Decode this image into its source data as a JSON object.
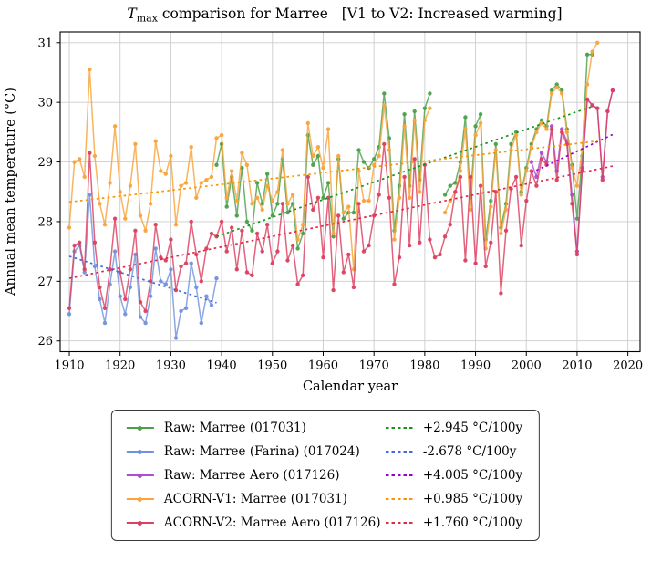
{
  "title": {
    "prefix_italic": "T",
    "subscript": "max",
    "rest": " comparison for Marree   [V1 to V2: Increased warming]"
  },
  "axes": {
    "xlabel": "Calendar year",
    "ylabel": "Annual mean temperature (°C)",
    "xlim": [
      1908.2,
      2022.4
    ],
    "ylim": [
      25.82,
      31.18
    ],
    "xticks": [
      1910,
      1920,
      1930,
      1940,
      1950,
      1960,
      1970,
      1980,
      1990,
      2000,
      2010,
      2020
    ],
    "yticks": [
      26,
      27,
      28,
      29,
      30,
      31
    ],
    "grid_color": "#cccccc",
    "frame_color": "#000000"
  },
  "chart_data": {
    "type": "line",
    "x_unit": "calendar year",
    "series": [
      {
        "slug": "raw-marree-017031",
        "label": "Raw: Marree (017031)",
        "color": "#4ca04c",
        "start_year": 1939,
        "values": [
          28.95,
          29.3,
          28.25,
          28.75,
          28.1,
          28.9,
          28.0,
          27.85,
          28.65,
          28.3,
          28.8,
          28.1,
          28.3,
          29.05,
          28.15,
          28.3,
          27.55,
          27.8,
          29.45,
          28.95,
          29.1,
          28.4,
          28.65,
          27.75,
          29.05,
          28.05,
          28.15,
          28.15,
          29.2,
          29.0,
          28.9,
          29.05,
          29.25,
          30.15,
          29.4,
          27.85,
          28.6,
          29.8,
          28.6,
          29.85,
          28.7,
          29.9,
          30.15,
          null,
          null,
          28.45,
          28.6,
          28.65,
          29.0,
          29.75,
          28.4,
          29.6,
          29.8,
          27.7,
          28.35,
          29.3,
          27.9,
          28.3,
          29.3,
          29.5,
          28.5,
          28.9,
          29.3,
          29.55,
          29.7,
          29.6,
          30.2,
          30.3,
          30.2,
          29.55,
          28.95,
          28.05,
          29.1,
          30.8,
          30.8
        ]
      },
      {
        "slug": "raw-marree-farina-017024",
        "label": "Raw: Marree (Farina) (017024)",
        "color": "#7292dd",
        "start_year": 1910,
        "values": [
          26.45,
          27.5,
          27.6,
          27.15,
          28.45,
          27.25,
          26.7,
          26.3,
          26.95,
          27.5,
          26.75,
          26.45,
          26.9,
          27.45,
          26.4,
          26.3,
          26.75,
          27.55,
          27.0,
          26.95,
          27.2,
          26.05,
          26.5,
          26.55,
          27.3,
          26.9,
          26.3,
          26.75,
          26.6,
          27.05
        ]
      },
      {
        "slug": "raw-marree-aero-017126",
        "label": "Raw: Marree Aero (017126)",
        "color": "#ab4fd1",
        "start_year": 2001,
        "values": [
          29.0,
          28.75,
          29.15,
          29.0,
          29.6,
          28.85,
          29.55,
          29.35,
          28.45,
          27.5,
          28.9,
          30.05,
          29.95,
          29.9,
          28.75,
          29.85,
          30.2
        ]
      },
      {
        "slug": "acorn-v1-marree-017031",
        "label": "ACORN-V1: Marree (017031)",
        "color": "#f8a43b",
        "start_year": 1910,
        "values": [
          27.9,
          29.0,
          29.05,
          28.75,
          30.55,
          29.1,
          28.3,
          27.95,
          28.65,
          29.6,
          28.5,
          28.05,
          28.6,
          29.3,
          28.1,
          27.85,
          28.3,
          29.35,
          28.85,
          28.8,
          29.1,
          27.95,
          28.6,
          28.65,
          29.25,
          28.4,
          28.65,
          28.7,
          28.75,
          29.4,
          29.45,
          28.4,
          28.85,
          28.35,
          29.15,
          28.95,
          28.3,
          28.4,
          28.2,
          28.6,
          28.35,
          28.5,
          29.2,
          28.3,
          28.45,
          27.7,
          27.95,
          29.65,
          29.1,
          29.25,
          28.9,
          29.55,
          27.8,
          29.1,
          28.15,
          28.25,
          27.2,
          28.85,
          28.35,
          28.35,
          28.95,
          29.1,
          29.95,
          29.2,
          27.7,
          28.4,
          29.6,
          28.4,
          29.7,
          28.5,
          29.7,
          29.9,
          null,
          null,
          28.15,
          28.35,
          28.5,
          28.85,
          29.55,
          28.2,
          29.45,
          29.65,
          27.55,
          28.25,
          29.2,
          27.8,
          28.2,
          29.2,
          29.45,
          28.45,
          28.85,
          29.25,
          29.5,
          29.65,
          29.55,
          30.15,
          30.25,
          30.15,
          29.5,
          28.9,
          28.6,
          29.2,
          30.3,
          30.85,
          31.0
        ]
      },
      {
        "slug": "acorn-v2-marree-aero-017126",
        "label": "ACORN-V2: Marree Aero (017126)",
        "color": "#dc4060",
        "start_year": 1910,
        "values": [
          26.55,
          27.6,
          27.65,
          27.2,
          29.15,
          27.65,
          26.9,
          26.55,
          27.2,
          28.05,
          27.15,
          26.7,
          27.2,
          27.85,
          26.65,
          26.5,
          27.0,
          27.95,
          27.4,
          27.35,
          27.7,
          26.85,
          27.25,
          27.3,
          28.0,
          27.45,
          27.0,
          27.55,
          27.8,
          27.75,
          28.0,
          27.5,
          27.9,
          27.2,
          27.85,
          27.15,
          27.1,
          27.8,
          27.5,
          27.95,
          27.3,
          27.5,
          28.3,
          27.35,
          27.6,
          26.95,
          27.1,
          28.75,
          28.2,
          28.4,
          27.4,
          28.4,
          26.85,
          28.1,
          27.15,
          27.45,
          26.9,
          28.3,
          27.5,
          27.6,
          28.1,
          28.45,
          29.3,
          28.4,
          26.95,
          27.4,
          28.75,
          27.6,
          29.05,
          27.65,
          28.95,
          27.7,
          27.4,
          27.45,
          27.75,
          27.95,
          28.5,
          28.75,
          27.35,
          28.75,
          27.3,
          28.6,
          27.25,
          27.65,
          28.5,
          26.8,
          27.85,
          28.55,
          28.75,
          27.6,
          28.35,
          28.85,
          28.6,
          29.05,
          28.95,
          29.55,
          28.7,
          29.5,
          29.3,
          28.3,
          27.45,
          28.85,
          30.05,
          29.95,
          29.9,
          28.7,
          29.85,
          30.2
        ]
      }
    ],
    "trends": [
      {
        "slug": "trend-raw-marree-017031",
        "label": "+2.945 °C/100y",
        "color": "#169416",
        "span": [
          1939,
          2013
        ],
        "endpoints": [
          27.75,
          29.93
        ]
      },
      {
        "slug": "trend-raw-marree-farina-017024",
        "label": "-2.678 °C/100y",
        "color": "#4169e1",
        "span": [
          1910,
          1939
        ],
        "endpoints": [
          27.42,
          26.64
        ]
      },
      {
        "slug": "trend-raw-marree-aero-017126",
        "label": "+4.005 °C/100y",
        "color": "#9400d3",
        "span": [
          2001,
          2017
        ],
        "endpoints": [
          28.82,
          29.46
        ]
      },
      {
        "slug": "trend-acorn-v1-marree-017031",
        "label": "+0.985 °C/100y",
        "color": "#f89406",
        "span": [
          1910,
          2014
        ],
        "endpoints": [
          28.33,
          29.35
        ]
      },
      {
        "slug": "trend-acorn-v2-marree-aero-017126",
        "label": "+1.760 °C/100y",
        "color": "#e02945",
        "span": [
          1910,
          2017
        ],
        "endpoints": [
          27.05,
          28.93
        ]
      }
    ]
  }
}
